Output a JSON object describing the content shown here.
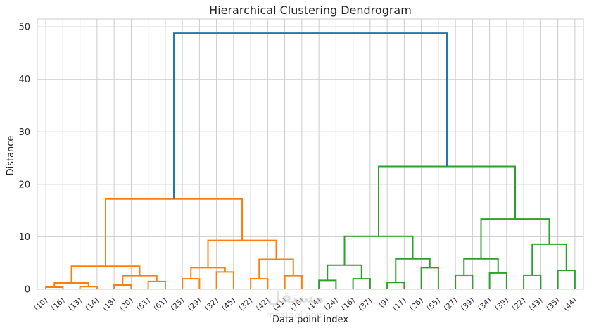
{
  "chart_data": {
    "type": "dendrogram",
    "title": "Hierarchical Clustering Dendrogram",
    "xlabel": "Data point index",
    "ylabel": "Distance",
    "ylim": [
      0,
      51.5
    ],
    "yticks": [
      0,
      10,
      20,
      30,
      40,
      50
    ],
    "grid": true,
    "leaves": [
      "(10)",
      "(16)",
      "(13)",
      "(14)",
      "(18)",
      "(20)",
      "(51)",
      "(61)",
      "(25)",
      "(29)",
      "(32)",
      "(45)",
      "(32)",
      "(42)",
      "(41)",
      "(70)",
      "(14)",
      "(24)",
      "(16)",
      "(37)",
      "(9)",
      "(17)",
      "(26)",
      "(55)",
      "(27)",
      "(39)",
      "(34)",
      "(39)",
      "(22)",
      "(43)",
      "(35)",
      "(44)"
    ],
    "merges": [
      {
        "left": 0,
        "right": 1,
        "height": 0.4,
        "color": "#ff7f0e"
      },
      {
        "left": 2,
        "right": 3,
        "height": 0.5,
        "color": "#ff7f0e"
      },
      {
        "left": 4,
        "right": 5,
        "height": 0.8,
        "color": "#ff7f0e"
      },
      {
        "left": 6,
        "right": 7,
        "height": 1.5,
        "color": "#ff7f0e"
      },
      {
        "left": 8,
        "right": 9,
        "height": 2.0,
        "color": "#ff7f0e"
      },
      {
        "left": 10,
        "right": 11,
        "height": 3.3,
        "color": "#ff7f0e"
      },
      {
        "left": 12,
        "right": 13,
        "height": 2.0,
        "color": "#ff7f0e"
      },
      {
        "left": 14,
        "right": 15,
        "height": 2.6,
        "color": "#ff7f0e"
      },
      {
        "left": 16,
        "right": 17,
        "height": 1.7,
        "color": "#2ca02c"
      },
      {
        "left": 18,
        "right": 19,
        "height": 2.0,
        "color": "#2ca02c"
      },
      {
        "left": 20,
        "right": 21,
        "height": 1.3,
        "color": "#2ca02c"
      },
      {
        "left": 22,
        "right": 23,
        "height": 4.1,
        "color": "#2ca02c"
      },
      {
        "left": 24,
        "right": 25,
        "height": 2.7,
        "color": "#2ca02c"
      },
      {
        "left": 26,
        "right": 27,
        "height": 3.1,
        "color": "#2ca02c"
      },
      {
        "left": 28,
        "right": 29,
        "height": 2.7,
        "color": "#2ca02c"
      },
      {
        "left": 30,
        "right": 31,
        "height": 3.6,
        "color": "#2ca02c"
      },
      {
        "left": 32,
        "right": 33,
        "height": 1.2,
        "color": "#ff7f0e"
      },
      {
        "left": 34,
        "right": 35,
        "height": 2.6,
        "color": "#ff7f0e"
      },
      {
        "left": 36,
        "right": 37,
        "height": 4.1,
        "color": "#ff7f0e"
      },
      {
        "left": 38,
        "right": 39,
        "height": 5.7,
        "color": "#ff7f0e"
      },
      {
        "left": 40,
        "right": 41,
        "height": 4.6,
        "color": "#2ca02c"
      },
      {
        "left": 42,
        "right": 43,
        "height": 5.8,
        "color": "#2ca02c"
      },
      {
        "left": 44,
        "right": 45,
        "height": 5.8,
        "color": "#2ca02c"
      },
      {
        "left": 46,
        "right": 47,
        "height": 8.6,
        "color": "#2ca02c"
      },
      {
        "left": 48,
        "right": 49,
        "height": 4.4,
        "color": "#ff7f0e"
      },
      {
        "left": 50,
        "right": 51,
        "height": 9.3,
        "color": "#ff7f0e"
      },
      {
        "left": 52,
        "right": 53,
        "height": 10.1,
        "color": "#2ca02c"
      },
      {
        "left": 54,
        "right": 55,
        "height": 13.4,
        "color": "#2ca02c"
      },
      {
        "left": 56,
        "right": 57,
        "height": 17.2,
        "color": "#ff7f0e"
      },
      {
        "left": 58,
        "right": 59,
        "height": 23.4,
        "color": "#2ca02c"
      },
      {
        "left": 60,
        "right": 61,
        "height": 48.8,
        "color": "#1f77b4"
      }
    ]
  },
  "watermark": {
    "main": "مستقل",
    "sub": "mostaql.com"
  }
}
